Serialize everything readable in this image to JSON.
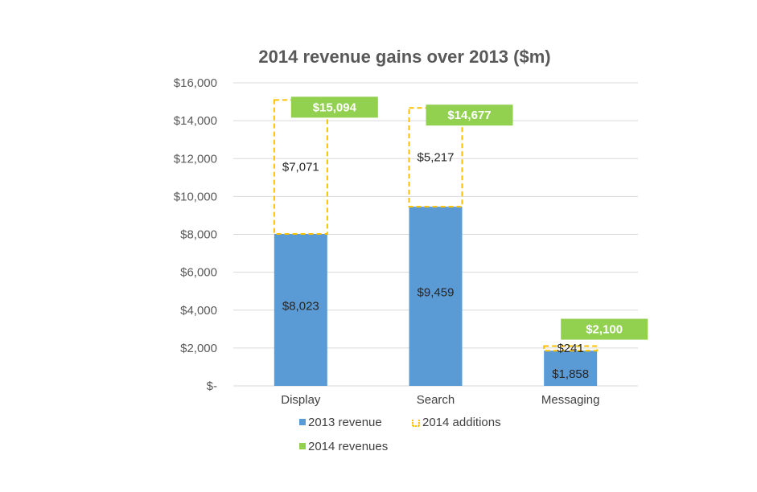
{
  "chart_data": {
    "type": "bar",
    "title": "2014 revenue gains over 2013 ($m)",
    "categories": [
      "Display",
      "Search",
      "Messaging"
    ],
    "ylim": [
      0,
      16000
    ],
    "yticks": [
      0,
      2000,
      4000,
      6000,
      8000,
      10000,
      12000,
      14000,
      16000
    ],
    "ytick_labels": [
      "$-",
      "$2,000",
      "$4,000",
      "$6,000",
      "$8,000",
      "$10,000",
      "$12,000",
      "$14,000",
      "$16,000"
    ],
    "grid": true,
    "legend_position": "bottom",
    "series": [
      {
        "name": "2013 revenue",
        "values": [
          8023,
          9459,
          1858
        ],
        "labels": [
          "$8,023",
          "$9,459",
          "$1,858"
        ],
        "color": "#5b9bd5",
        "style": "solid"
      },
      {
        "name": "2014 additions",
        "values": [
          7071,
          5217,
          241
        ],
        "labels": [
          "$7,071",
          "$5,217",
          "$241"
        ],
        "color": "#ffc000",
        "style": "dashed-outline"
      },
      {
        "name": "2014 revenues",
        "values": [
          15094,
          14677,
          2100
        ],
        "labels": [
          "$15,094",
          "$14,677",
          "$2,100"
        ],
        "color": "#92d050",
        "style": "label-box"
      }
    ]
  }
}
